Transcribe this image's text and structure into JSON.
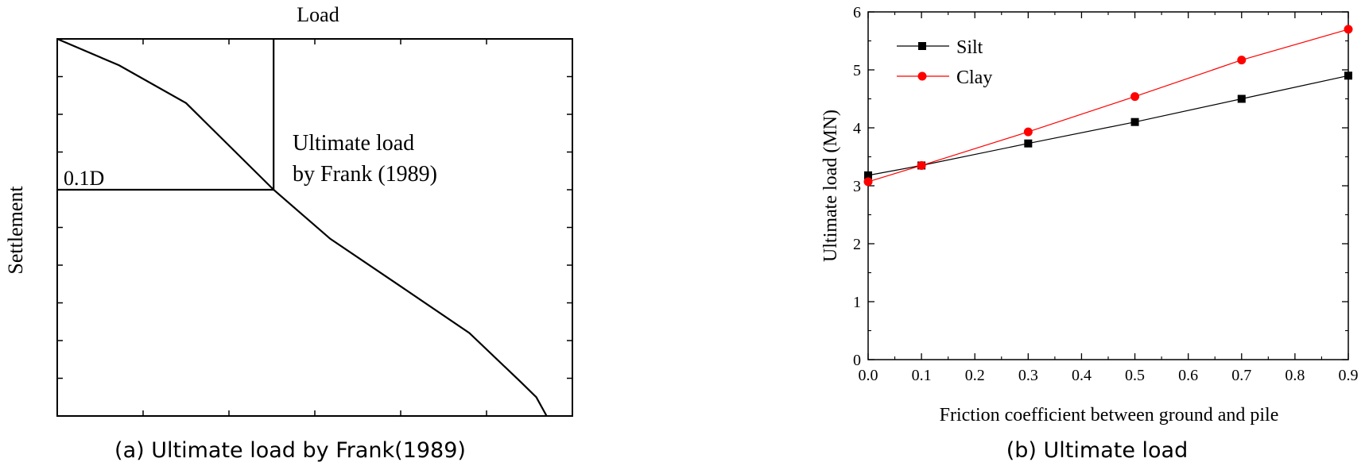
{
  "chart_data": [
    {
      "type": "line",
      "title": "",
      "xlabel": "Load",
      "ylabel": "Settlement",
      "caption": "(a) Ultimate load by Frank(1989)",
      "annotations": {
        "settlement_marker": "0.1D",
        "ultimate_line1": "Ultimate load",
        "ultimate_line2": "by Frank (1989)"
      },
      "series": [
        {
          "x": [
            0,
            0.12,
            0.25,
            0.42,
            0.53,
            0.66,
            0.8,
            0.9,
            0.93,
            0.95
          ],
          "y": [
            0,
            0.07,
            0.17,
            0.4,
            0.53,
            0.65,
            0.78,
            0.91,
            0.95,
            1.0
          ]
        }
      ],
      "ultimate_point": {
        "x": 0.42,
        "y": 0.4
      },
      "xlim": [
        0,
        1
      ],
      "ylim": [
        0,
        1
      ],
      "y_axis": "inverted",
      "ticks": "unlabeled"
    },
    {
      "type": "line",
      "title": "",
      "xlabel": "Friction coefficient between ground and pile",
      "ylabel": "Ultimate load (MN)",
      "caption": "(b) Ultimate load",
      "x": [
        0.0,
        0.1,
        0.3,
        0.5,
        0.7,
        0.9
      ],
      "series": [
        {
          "name": "Silt",
          "color": "#000000",
          "marker": "square",
          "values": [
            3.18,
            3.35,
            3.73,
            4.1,
            4.5,
            4.9
          ]
        },
        {
          "name": "Clay",
          "color": "#ff0000",
          "marker": "circle",
          "values": [
            3.07,
            3.35,
            3.93,
            4.54,
            5.17,
            5.7
          ]
        }
      ],
      "xlim": [
        0,
        0.9
      ],
      "ylim": [
        0,
        6
      ],
      "xticks": [
        "0.0",
        "0.1",
        "0.2",
        "0.3",
        "0.4",
        "0.5",
        "0.6",
        "0.7",
        "0.8",
        "0.9"
      ],
      "yticks": [
        "0",
        "1",
        "2",
        "3",
        "4",
        "5",
        "6"
      ],
      "legend": "top-left",
      "grid": false
    }
  ]
}
